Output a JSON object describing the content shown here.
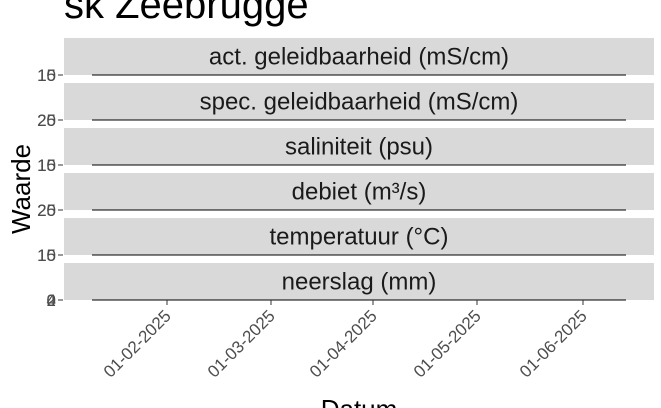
{
  "chart_data": {
    "type": "line",
    "title": "sk Zeebrugge",
    "xlabel": "Datum",
    "ylabel": "Waarde",
    "x_ticks": [
      "01-02-2025",
      "01-03-2025",
      "01-04-2025",
      "01-05-2025",
      "01-06-2025"
    ],
    "facets": [
      {
        "label": "act. geleidbaarheid (mS/cm)",
        "y_ticks": [
          "10",
          "15"
        ]
      },
      {
        "label": "spec. geleidbaarheid (mS/cm)",
        "y_ticks": [
          "20",
          "25"
        ]
      },
      {
        "label": "saliniteit (psu)",
        "y_ticks": [
          "10",
          "15"
        ]
      },
      {
        "label": "debiet (m³/s)",
        "y_ticks": [
          "20",
          "25"
        ]
      },
      {
        "label": "temperatuur (°C)",
        "y_ticks": [
          "10",
          "15"
        ]
      },
      {
        "label": "neerslag (mm)",
        "y_ticks": [
          "0",
          "2",
          "4"
        ]
      }
    ],
    "series": []
  }
}
